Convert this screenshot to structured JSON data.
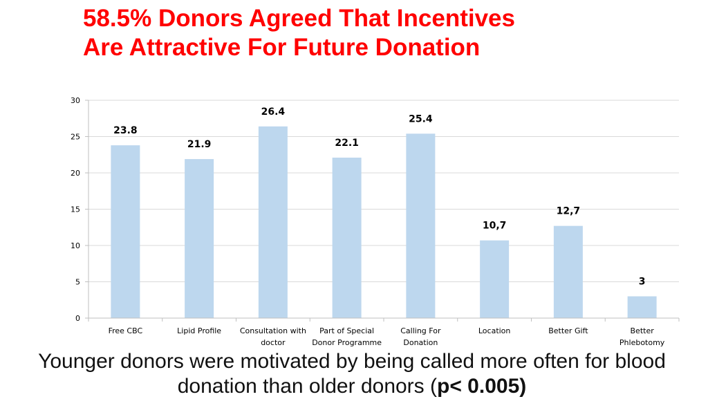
{
  "slide": {
    "title_line1": "58.5%  Donors Agreed That Incentives",
    "title_line2": "Are Attractive For Future Donation",
    "caption_line1": "Younger donors were motivated by being called more often for blood",
    "caption_line2_prefix": "donation than older donors (",
    "caption_line2_bold": "p< 0.005)"
  },
  "colors": {
    "title": "#ff0000",
    "bar_fill": "#bdd7ee",
    "gridline": "#d9d9d9",
    "axis": "#bfbfbf"
  },
  "chart_data": {
    "type": "bar",
    "title": "",
    "xlabel": "",
    "ylabel": "",
    "ylim": [
      0,
      30
    ],
    "yticks": [
      "0",
      "5",
      "10",
      "15",
      "20",
      "25",
      "30"
    ],
    "grid": true,
    "legend": "none",
    "categories": [
      [
        "Free CBC"
      ],
      [
        "Lipid Profile"
      ],
      [
        "Consultation with",
        "doctor"
      ],
      [
        "Part of Special",
        "Donor Programme"
      ],
      [
        "Calling For",
        "Donation"
      ],
      [
        "Location"
      ],
      [
        "Better Gift"
      ],
      [
        "Better",
        "Phlebotomy"
      ]
    ],
    "values": [
      23.8,
      21.9,
      26.4,
      22.1,
      25.4,
      10.7,
      12.7,
      3
    ],
    "value_labels": [
      "23.8",
      "21.9",
      "26.4",
      "22.1",
      "25.4",
      "10,7",
      "12,7",
      "3"
    ]
  }
}
